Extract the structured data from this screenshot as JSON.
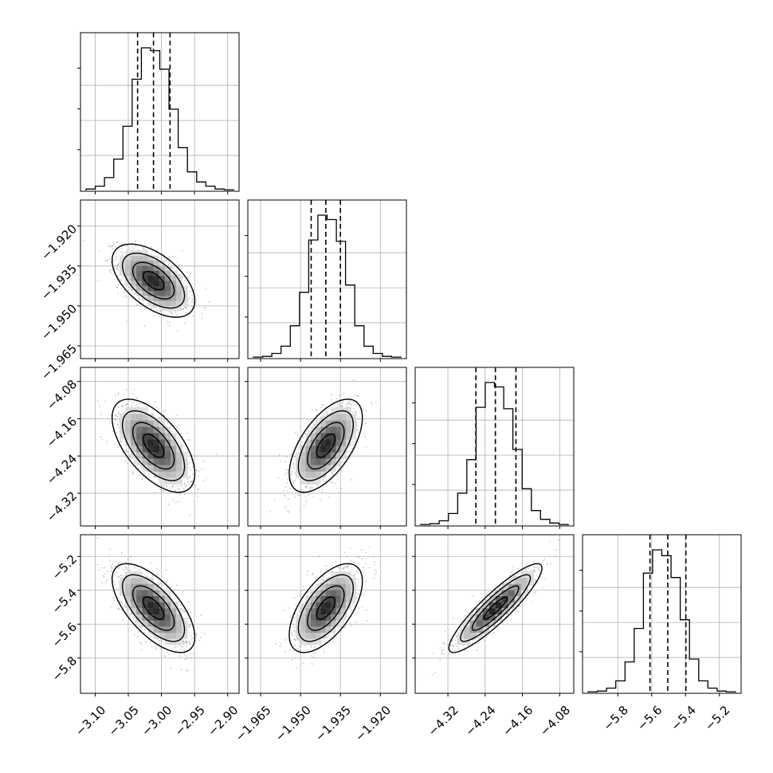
{
  "chart_data": {
    "type": "corner",
    "parameters": [
      {
        "range": [
          -3.115,
          -2.89
        ],
        "ticks": [
          -3.1,
          -3.05,
          -3.0,
          -2.95,
          -2.9
        ],
        "tick_labels": [
          "−3.10",
          "−3.05",
          "−3.00",
          "−2.95",
          "−2.90"
        ],
        "mean": -3.012,
        "sd": 0.025,
        "quantiles": [
          -3.036,
          -3.012,
          -2.987
        ],
        "hist_counts": [
          1,
          3,
          9,
          22,
          45,
          78,
          100,
          98,
          85,
          57,
          30,
          13,
          6,
          3,
          1,
          0.5
        ]
      },
      {
        "range": [
          -1.968,
          -1.912
        ],
        "ticks": [
          -1.965,
          -1.95,
          -1.935,
          -1.92
        ],
        "tick_labels": [
          "−1.965",
          "−1.950",
          "−1.935",
          "−1.920"
        ],
        "mean": -1.9405,
        "sd": 0.0055,
        "quantiles": [
          -1.946,
          -1.9405,
          -1.935
        ],
        "hist_counts": [
          0.5,
          1,
          3,
          8,
          22,
          45,
          81,
          98,
          95,
          80,
          50,
          22,
          8,
          3,
          1,
          0.5
        ]
      },
      {
        "range": [
          -4.38,
          -4.06
        ],
        "ticks": [
          -4.32,
          -4.24,
          -4.16,
          -4.08
        ],
        "tick_labels": [
          "−4.32",
          "−4.24",
          "−4.16",
          "−4.08"
        ],
        "mean": -4.218,
        "sd": 0.04,
        "quantiles": [
          -4.26,
          -4.218,
          -4.174
        ],
        "hist_counts": [
          0.5,
          1,
          3,
          8,
          22,
          45,
          81,
          98,
          95,
          80,
          52,
          25,
          10,
          4,
          1.5,
          0.5
        ]
      },
      {
        "range": [
          -5.98,
          -5.1
        ],
        "ticks": [
          -5.8,
          -5.6,
          -5.4,
          -5.2
        ],
        "tick_labels": [
          "−5.8",
          "−5.6",
          "−5.4",
          "−5.2"
        ],
        "mean": -5.505,
        "sd": 0.105,
        "quantiles": [
          -5.61,
          -5.505,
          -5.398
        ],
        "hist_counts": [
          0.5,
          1,
          3,
          8,
          21,
          44,
          82,
          98,
          94,
          79,
          50,
          23,
          8,
          3,
          1,
          0.5
        ]
      }
    ],
    "correlations": [
      [
        1.0,
        -0.55,
        -0.6,
        -0.65
      ],
      [
        -0.55,
        1.0,
        0.6,
        0.6
      ],
      [
        -0.6,
        0.6,
        1.0,
        0.9
      ],
      [
        -0.65,
        0.6,
        0.9,
        1.0
      ]
    ],
    "contour_levels_sigma": [
      0.5,
      1.0,
      1.5,
      2.0
    ],
    "grid": true,
    "colors": {
      "points": "#9a9a9a",
      "contour": "#000000",
      "grid": "#b0b0b0",
      "frame": "#000000"
    }
  }
}
